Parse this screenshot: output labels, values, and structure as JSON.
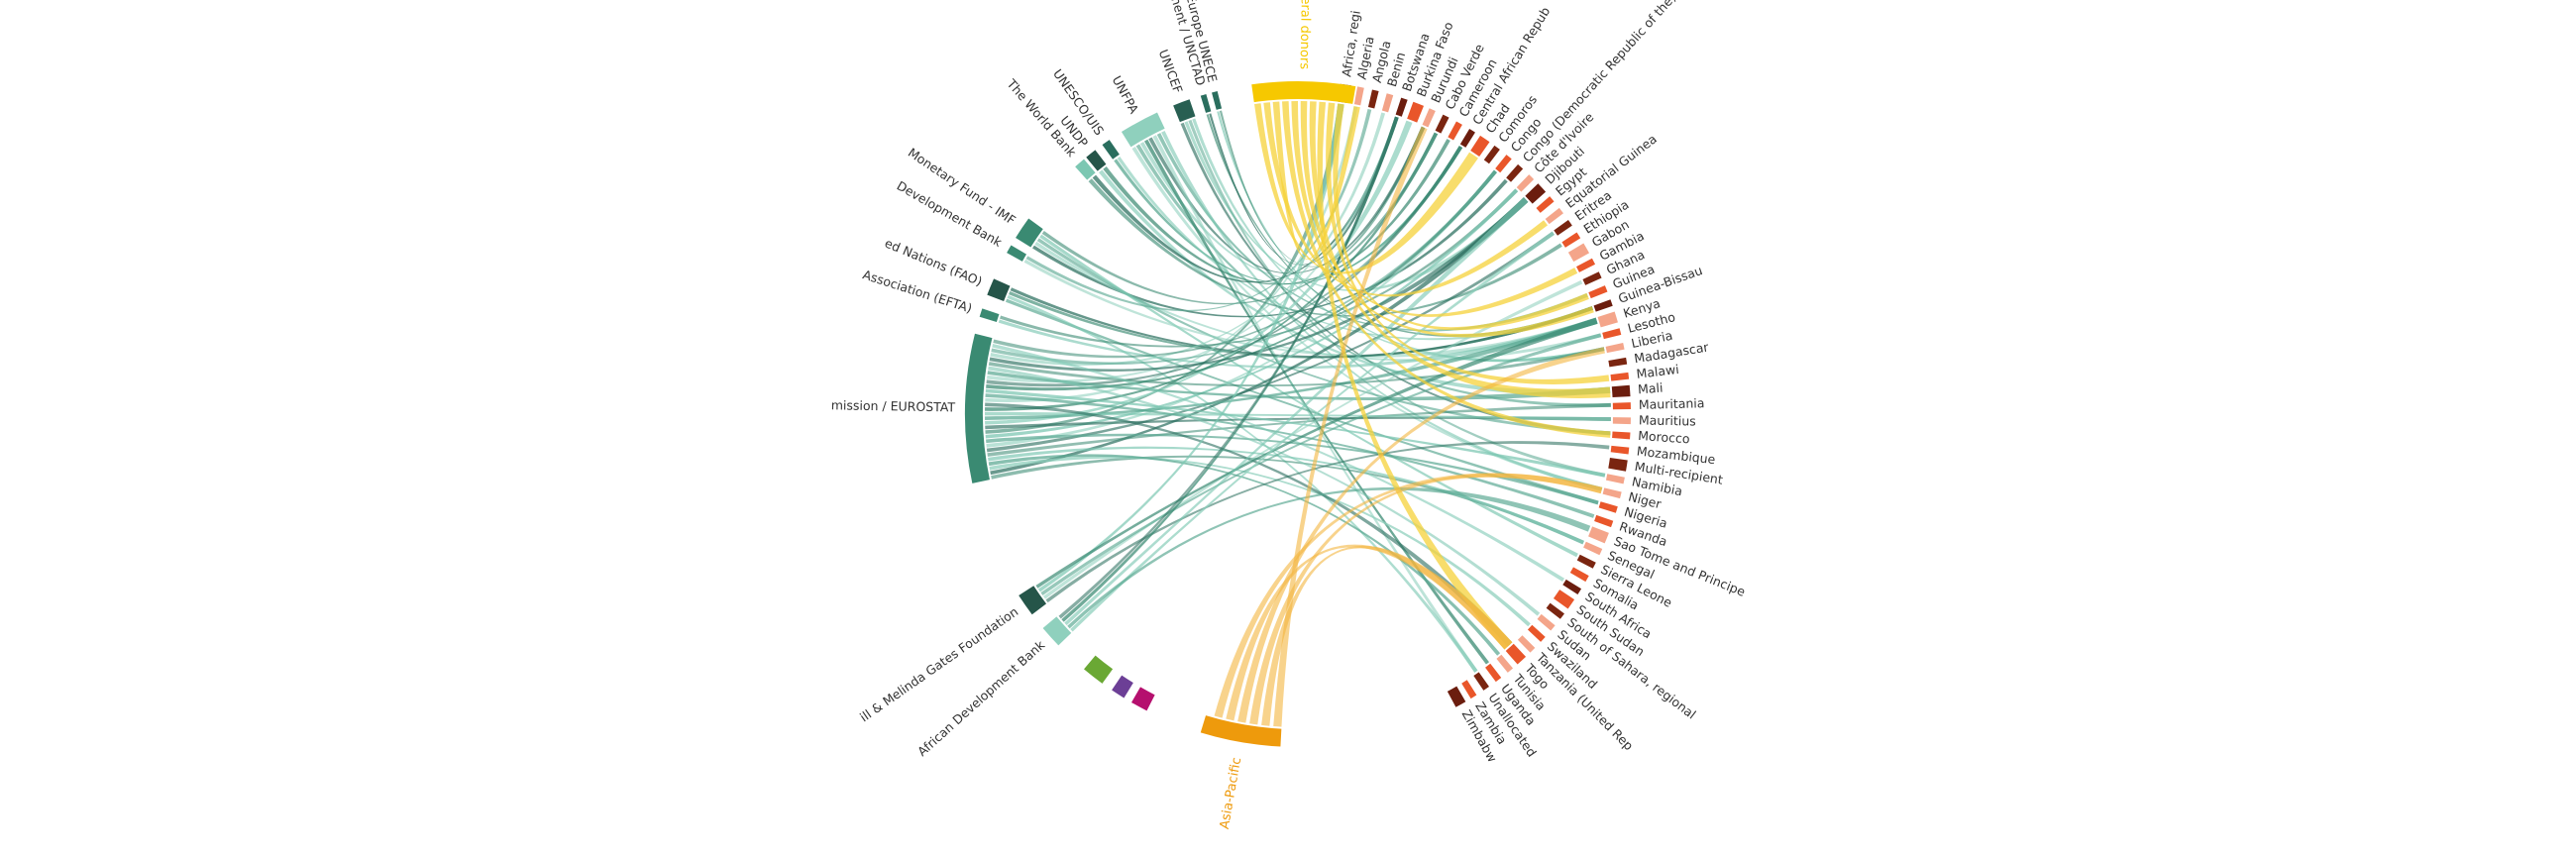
{
  "chart_data": {
    "type": "chord",
    "title": "",
    "donors": [
      {
        "name": "ion for Europe UNECE",
        "color": "#2a6e5e"
      },
      {
        "name": "Development / UNCTAD",
        "color": "#2a6e5e"
      },
      {
        "name": "UNICEF",
        "color": "#285f52"
      },
      {
        "name": "UNFPA",
        "color": "#8fd0bd"
      },
      {
        "name": "UNESCO/UIS",
        "color": "#2a6e5e"
      },
      {
        "name": "UNDP",
        "color": "#255549"
      },
      {
        "name": "The World Bank",
        "color": "#7cc7b2"
      },
      {
        "name": "Monetary Fund - IMF",
        "color": "#3a8a72"
      },
      {
        "name": "Development Bank",
        "color": "#3a8a72"
      },
      {
        "name": "ed Nations (FAO)",
        "color": "#255549"
      },
      {
        "name": "Association (EFTA)",
        "color": "#3a8a72"
      },
      {
        "name": "mission / EUROSTAT",
        "color": "#3a8a72"
      },
      {
        "name": "ill & Melinda Gates Foundation",
        "color": "#255549"
      },
      {
        "name": "African Development Bank",
        "color": "#8fd0bd"
      }
    ],
    "donor_groups": [
      {
        "name": "Bilateral donors",
        "color": "#f6c800"
      },
      {
        "name": "Asia-Pacific",
        "color": "#ee9a0c"
      }
    ],
    "small_groups": [
      {
        "color": "#b5106e"
      },
      {
        "color": "#6c3f96"
      },
      {
        "color": "#6aa834"
      }
    ],
    "recipients": [
      {
        "name": "Africa, regi",
        "color": "#6b1d0e"
      },
      {
        "name": "Algeria",
        "color": "#f4a58a"
      },
      {
        "name": "Angola",
        "color": "#7a2510"
      },
      {
        "name": "Benin",
        "color": "#f2a287"
      },
      {
        "name": "Botswana",
        "color": "#6b1d0e"
      },
      {
        "name": "Burkina Faso",
        "color": "#e9562a"
      },
      {
        "name": "Burundi",
        "color": "#f4a58a"
      },
      {
        "name": "Cabo Verde",
        "color": "#7a2510"
      },
      {
        "name": "Cameroon",
        "color": "#e9562a"
      },
      {
        "name": "Central African Repub",
        "color": "#6b1d0e"
      },
      {
        "name": "Chad",
        "color": "#e9562a"
      },
      {
        "name": "Comoros",
        "color": "#7a2510"
      },
      {
        "name": "Congo",
        "color": "#e9562a"
      },
      {
        "name": "Congo (Democratic Republic of the)",
        "color": "#7a2510"
      },
      {
        "name": "Côte d'Ivoire",
        "color": "#f4a58a"
      },
      {
        "name": "Djibouti",
        "color": "#6b1d0e"
      },
      {
        "name": "Egypt",
        "color": "#e9562a"
      },
      {
        "name": "Equatorial Guinea",
        "color": "#f4a58a"
      },
      {
        "name": "Eritrea",
        "color": "#7a2510"
      },
      {
        "name": "Ethiopia",
        "color": "#e9562a"
      },
      {
        "name": "Gabon",
        "color": "#f4a58a"
      },
      {
        "name": "Gambia",
        "color": "#e9562a"
      },
      {
        "name": "Ghana",
        "color": "#7a2510"
      },
      {
        "name": "Guinea",
        "color": "#e9562a"
      },
      {
        "name": "Guinea-Bissau",
        "color": "#6b1d0e"
      },
      {
        "name": "Kenya",
        "color": "#f4a58a"
      },
      {
        "name": "Lesotho",
        "color": "#e9562a"
      },
      {
        "name": "Liberia",
        "color": "#f4a58a"
      },
      {
        "name": "Madagascar",
        "color": "#7a2510"
      },
      {
        "name": "Malawi",
        "color": "#e9562a"
      },
      {
        "name": "Mali",
        "color": "#6b1d0e"
      },
      {
        "name": "Mauritania",
        "color": "#e9562a"
      },
      {
        "name": "Mauritius",
        "color": "#f4a58a"
      },
      {
        "name": "Morocco",
        "color": "#e9562a"
      },
      {
        "name": "Mozambique",
        "color": "#e9562a"
      },
      {
        "name": "Multi-recipient",
        "color": "#7a2510"
      },
      {
        "name": "Namibia",
        "color": "#f4a58a"
      },
      {
        "name": "Niger",
        "color": "#f4a58a"
      },
      {
        "name": "Nigeria",
        "color": "#e9562a"
      },
      {
        "name": "Rwanda",
        "color": "#e9562a"
      },
      {
        "name": "Sao Tome and Principe",
        "color": "#f4a58a"
      },
      {
        "name": "Senegal",
        "color": "#f4a58a"
      },
      {
        "name": "Sierra Leone",
        "color": "#7a2510"
      },
      {
        "name": "Somalia",
        "color": "#e9562a"
      },
      {
        "name": "South Africa",
        "color": "#6b1d0e"
      },
      {
        "name": "South Sudan",
        "color": "#e9562a"
      },
      {
        "name": "South of Sahara, regional",
        "color": "#7a2510"
      },
      {
        "name": "Sudan",
        "color": "#f4a58a"
      },
      {
        "name": "Swaziland",
        "color": "#e9562a"
      },
      {
        "name": "Tanzania (United Rep",
        "color": "#f4a58a"
      },
      {
        "name": "Togo",
        "color": "#e9562a"
      },
      {
        "name": "Tunisia",
        "color": "#f4a58a"
      },
      {
        "name": "Uganda",
        "color": "#e9562a"
      },
      {
        "name": "Unallocated",
        "color": "#7a2510"
      },
      {
        "name": "Zambia",
        "color": "#e9562a"
      },
      {
        "name": "Zimbabw",
        "color": "#6b1d0e"
      }
    ]
  }
}
